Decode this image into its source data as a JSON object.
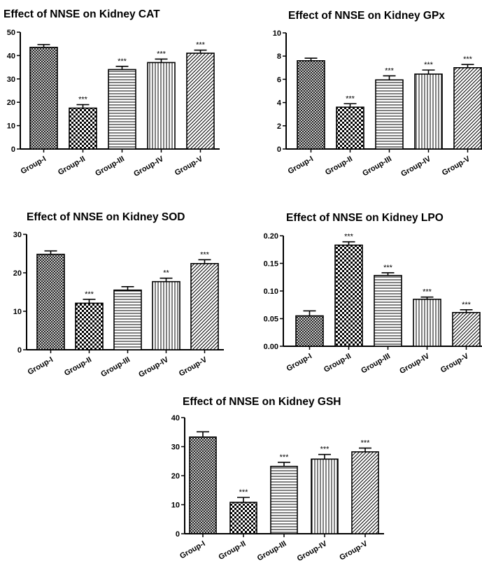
{
  "chart_data": [
    {
      "type": "bar",
      "title": "Effect of NNSE on Kidney CAT",
      "categories": [
        "Group-I",
        "Group-II",
        "Group-III",
        "Group-IV",
        "Group-V"
      ],
      "values": [
        43.5,
        17.5,
        34,
        37,
        41
      ],
      "errors": [
        1.2,
        1.5,
        1.4,
        1.5,
        1.3
      ],
      "annotations": [
        "",
        "***",
        "***",
        "***",
        "***"
      ],
      "ylim": [
        0,
        50
      ],
      "yticks": [
        "0",
        "10",
        "20",
        "30",
        "40",
        "50"
      ],
      "xlabel": "",
      "ylabel": ""
    },
    {
      "type": "bar",
      "title": "Effect of NNSE on Kidney GPx",
      "categories": [
        "Group-I",
        "Group-II",
        "Group-III",
        "Group-IV",
        "Group-V"
      ],
      "values": [
        7.6,
        3.6,
        5.95,
        6.45,
        7.0
      ],
      "errors": [
        0.22,
        0.3,
        0.35,
        0.35,
        0.28
      ],
      "annotations": [
        "",
        "***",
        "***",
        "***",
        "***"
      ],
      "ylim": [
        0,
        10
      ],
      "yticks": [
        "0",
        "2",
        "4",
        "6",
        "8",
        "10"
      ],
      "xlabel": "",
      "ylabel": ""
    },
    {
      "type": "bar",
      "title": "Effect of NNSE on Kidney SOD",
      "categories": [
        "Group-I",
        "Group-II",
        "Group-III",
        "Group-IV",
        "Group-V"
      ],
      "values": [
        24.8,
        12.1,
        15.5,
        17.7,
        22.4
      ],
      "errors": [
        0.9,
        1.0,
        0.9,
        0.9,
        1.0
      ],
      "annotations": [
        "",
        "***",
        "",
        "**",
        "***"
      ],
      "ylim": [
        0,
        30
      ],
      "yticks": [
        "0",
        "10",
        "20",
        "30"
      ],
      "xlabel": "",
      "ylabel": ""
    },
    {
      "type": "bar",
      "title": "Effect of NNSE on Kidney LPO",
      "categories": [
        "Group-I",
        "Group-II",
        "Group-III",
        "Group-IV",
        "Group-V"
      ],
      "values": [
        0.055,
        0.183,
        0.128,
        0.085,
        0.061
      ],
      "errors": [
        0.009,
        0.006,
        0.005,
        0.004,
        0.005
      ],
      "annotations": [
        "",
        "***",
        "***",
        "***",
        "***"
      ],
      "ylim": [
        0,
        0.2
      ],
      "yticks": [
        "0.00",
        "0.05",
        "0.10",
        "0.15",
        "0.20"
      ],
      "xlabel": "",
      "ylabel": ""
    },
    {
      "type": "bar",
      "title": "Effect of NNSE on Kidney GSH",
      "categories": [
        "Group-I",
        "Group-II",
        "Group-III",
        "Group-IV",
        "Group-V"
      ],
      "values": [
        33.3,
        10.8,
        23.2,
        25.7,
        28.2
      ],
      "errors": [
        1.8,
        1.7,
        1.4,
        1.6,
        1.3
      ],
      "annotations": [
        "",
        "***",
        "***",
        "***",
        "***"
      ],
      "ylim": [
        0,
        40
      ],
      "yticks": [
        "0",
        "10",
        "20",
        "30",
        "40"
      ],
      "xlabel": "",
      "ylabel": ""
    }
  ]
}
